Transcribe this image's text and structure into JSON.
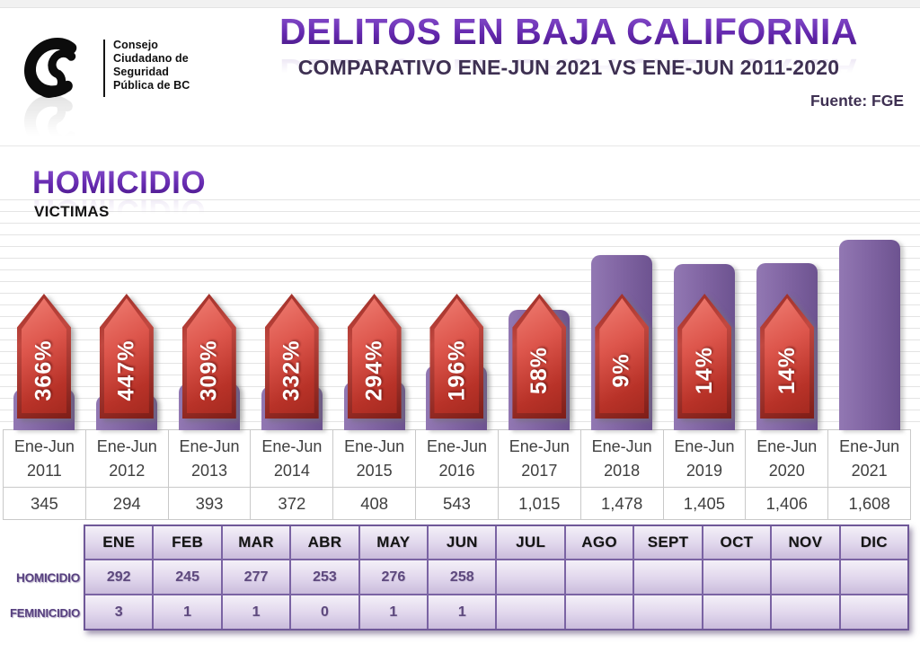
{
  "header": {
    "logo": {
      "monogram": "CS",
      "org_lines": [
        "Consejo",
        "Ciudadano de",
        "Seguridad",
        "Pública de BC"
      ]
    },
    "title": "DELITOS EN BAJA CALIFORNIA",
    "subtitle": "COMPARATIVO ENE-JUN 2021 VS ENE-JUN 2011-2020",
    "source": "Fuente: FGE"
  },
  "section": {
    "title": "HOMICIDIO",
    "subtitle": "VICTIMAS"
  },
  "chart_data": {
    "type": "bar",
    "title": "HOMICIDIO",
    "ylabel": "VICTIMAS",
    "categories": [
      "Ene-Jun 2011",
      "Ene-Jun 2012",
      "Ene-Jun 2013",
      "Ene-Jun 2014",
      "Ene-Jun 2015",
      "Ene-Jun 2016",
      "Ene-Jun 2017",
      "Ene-Jun 2018",
      "Ene-Jun 2019",
      "Ene-Jun 2020",
      "Ene-Jun 2021"
    ],
    "values": [
      345,
      294,
      393,
      372,
      408,
      543,
      1015,
      1478,
      1405,
      1406,
      1608
    ],
    "value_labels": [
      "345",
      "294",
      "393",
      "372",
      "408",
      "543",
      "1,015",
      "1,478",
      "1,405",
      "1,406",
      "1,608"
    ],
    "percent_labels": [
      "366%",
      "447%",
      "309%",
      "332%",
      "294%",
      "196%",
      "58%",
      "9%",
      "14%",
      "14%",
      ""
    ],
    "ylim": [
      0,
      1940
    ],
    "grid": true,
    "grid_step": 100,
    "legend": "none",
    "bar_color": "#8064A2",
    "arrow_color": "#C0392B"
  },
  "monthly_table": {
    "months": [
      "ENE",
      "FEB",
      "MAR",
      "ABR",
      "MAY",
      "JUN",
      "JUL",
      "AGO",
      "SEPT",
      "OCT",
      "NOV",
      "DIC"
    ],
    "rows": [
      {
        "label": "HOMICIDIO",
        "values": [
          "292",
          "245",
          "277",
          "253",
          "276",
          "258",
          "",
          "",
          "",
          "",
          "",
          ""
        ]
      },
      {
        "label": "FEMINICIDIO",
        "values": [
          "3",
          "1",
          "1",
          "0",
          "1",
          "1",
          "",
          "",
          "",
          "",
          "",
          ""
        ]
      }
    ]
  }
}
